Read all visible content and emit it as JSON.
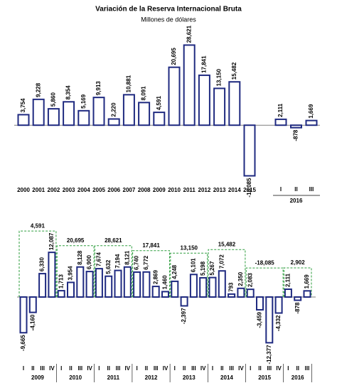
{
  "chart_data": [
    {
      "type": "bar",
      "title": "Variación de la Reserva Internacional Bruta",
      "subtitle": "Millones de dólares",
      "color": "#1f2a80",
      "categories": [
        "2000",
        "2001",
        "2002",
        "2003",
        "2004",
        "2005",
        "2006",
        "2007",
        "2008",
        "2009",
        "2010",
        "2011",
        "2012",
        "2013",
        "2014",
        "2015"
      ],
      "values": [
        3754,
        9228,
        5860,
        8354,
        5169,
        9913,
        2220,
        10881,
        8091,
        4591,
        20695,
        28621,
        17841,
        13150,
        15482,
        -18085
      ],
      "value_labels": [
        "3,754",
        "9,228",
        "5,860",
        "8,354",
        "5,169",
        "9,913",
        "2,220",
        "10,881",
        "8,091",
        "4,591",
        "20,695",
        "28,621",
        "17,841",
        "13,150",
        "15,482",
        "-18,085"
      ],
      "groups": [
        {
          "name": "2016",
          "categories": [
            "I",
            "II",
            "III"
          ],
          "values": [
            2111,
            -878,
            1669
          ],
          "value_labels": [
            "2,111",
            "-878",
            "1,669"
          ]
        }
      ],
      "ylim": [
        -20000,
        30000
      ]
    },
    {
      "type": "bar",
      "color": "#1f2a80",
      "bracket_color": "#2e9e3e",
      "ylim": [
        -15000,
        15000
      ],
      "groups": [
        {
          "name": "2009",
          "categories": [
            "I",
            "II",
            "III",
            "IV"
          ],
          "values": [
            -9665,
            -4160,
            6330,
            12087
          ],
          "value_labels": [
            "-9,665",
            "-4,160",
            "6,330",
            "12,087"
          ],
          "total": 4591,
          "total_label": "4,591"
        },
        {
          "name": "2010",
          "categories": [
            "I",
            "II",
            "III",
            "IV"
          ],
          "values": [
            1713,
            3954,
            8128,
            6900
          ],
          "value_labels": [
            "1,713",
            "3,954",
            "8,128",
            "6,900"
          ],
          "total": 20695,
          "total_label": "20,695"
        },
        {
          "name": "2011",
          "categories": [
            "I",
            "II",
            "III",
            "IV"
          ],
          "values": [
            7674,
            5632,
            7194,
            8121
          ],
          "value_labels": [
            "7,674",
            "5,632",
            "7,194",
            "8,121"
          ],
          "total": 28621,
          "total_label": "28,621"
        },
        {
          "name": "2012",
          "categories": [
            "I",
            "II",
            "III",
            "IV"
          ],
          "values": [
            6740,
            6772,
            2869,
            1460
          ],
          "value_labels": [
            "6,740",
            "6,772",
            "2,869",
            "1,460"
          ],
          "total": 17841,
          "total_label": "17,841"
        },
        {
          "name": "2013",
          "categories": [
            "I",
            "II",
            "III",
            "IV"
          ],
          "values": [
            4248,
            -2397,
            6101,
            5198
          ],
          "value_labels": [
            "4,248",
            "-2,397",
            "6,101",
            "5,198"
          ],
          "total": 13150,
          "total_label": "13,150"
        },
        {
          "name": "2014",
          "categories": [
            "I",
            "II",
            "III",
            "IV"
          ],
          "values": [
            5267,
            7072,
            793,
            2350
          ],
          "value_labels": [
            "5,267",
            "7,072",
            "793",
            "2,350"
          ],
          "total": 15482,
          "total_label": "15,482"
        },
        {
          "name": "2015",
          "categories": [
            "I",
            "II",
            "III",
            "IV"
          ],
          "values": [
            2083,
            -3459,
            -12377,
            -4332
          ],
          "value_labels": [
            "2,083",
            "-3,459",
            "-12,377",
            "-4,332"
          ],
          "total": -18085,
          "total_label": "-18,085"
        },
        {
          "name": "2016",
          "categories": [
            "I",
            "II",
            "III"
          ],
          "values": [
            2111,
            -878,
            1669
          ],
          "value_labels": [
            "2,111",
            "-878",
            "1,669"
          ],
          "total": 2902,
          "total_label": "2,902"
        }
      ]
    }
  ]
}
